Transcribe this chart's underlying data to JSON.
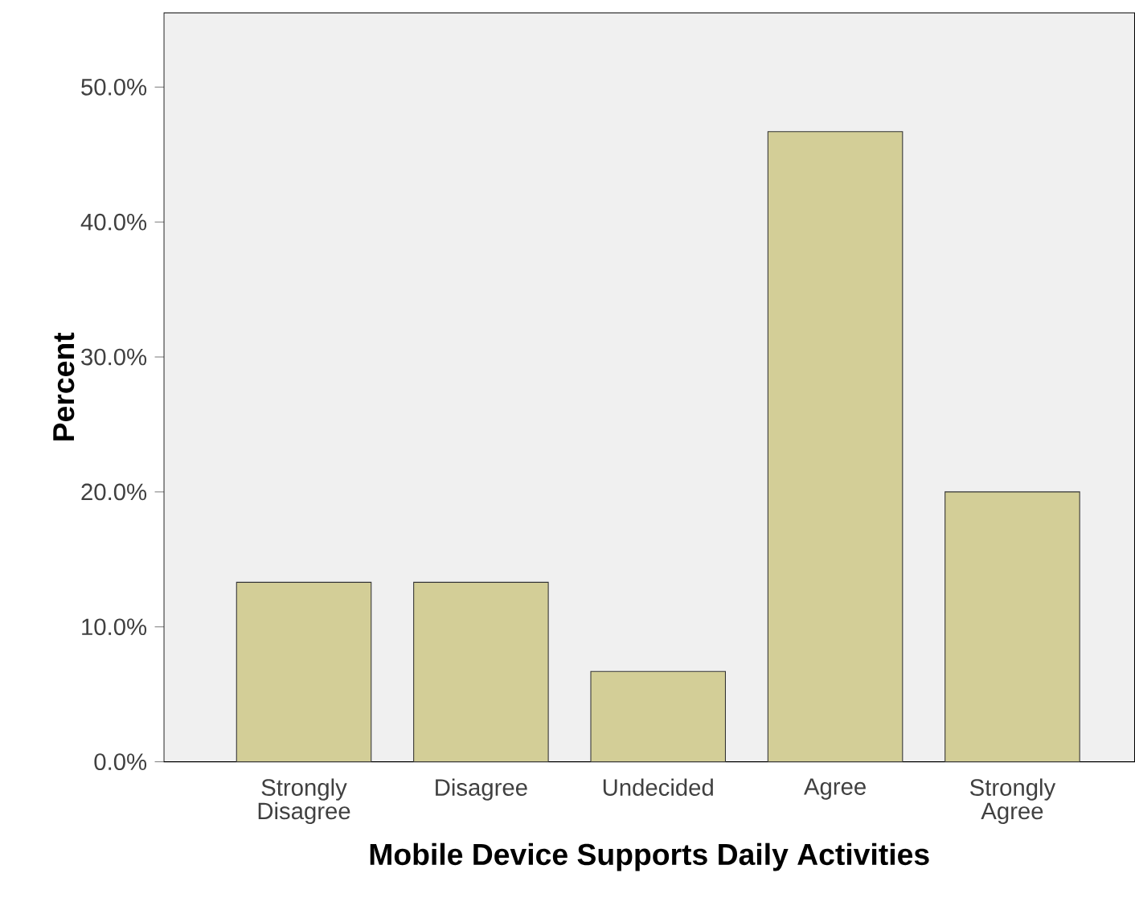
{
  "chart_data": {
    "type": "bar",
    "xlabel": "Mobile Device Supports Daily Activities",
    "ylabel": "Percent",
    "categories": [
      "Strongly Disagree",
      "Disagree",
      "Undecided",
      "Agree",
      "Strongly Agree"
    ],
    "values": [
      13.3,
      13.3,
      6.7,
      46.7,
      20.0
    ],
    "color": "#d3ce97",
    "ylim": [
      0,
      55.5
    ],
    "yticks": [
      {
        "value": 0,
        "label": "0.0%"
      },
      {
        "value": 10,
        "label": "10.0%"
      },
      {
        "value": 20,
        "label": "20.0%"
      },
      {
        "value": 30,
        "label": "30.0%"
      },
      {
        "value": 40,
        "label": "40.0%"
      },
      {
        "value": 50,
        "label": "50.0%"
      }
    ],
    "grid": false
  }
}
